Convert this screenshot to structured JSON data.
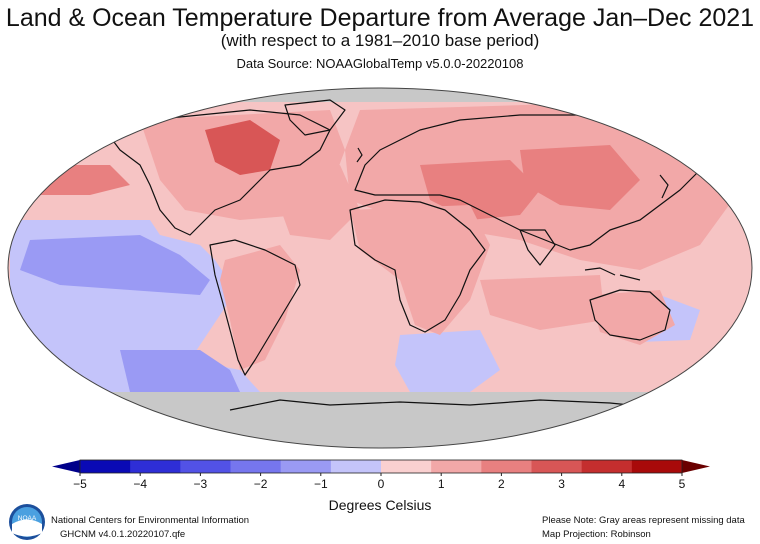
{
  "header": {
    "title": "Land & Ocean Temperature Departure from Average Jan–Dec 2021",
    "subtitle": "(with respect to a 1981–2010 base period)",
    "source": "Data Source: NOAAGlobalTemp v5.0.0-20220108"
  },
  "legend": {
    "ticks": [
      "−5",
      "−4",
      "−3",
      "−2",
      "−1",
      "0",
      "1",
      "2",
      "3",
      "4",
      "5"
    ],
    "units": "Degrees Celsius",
    "colors": [
      "#0a0ab5",
      "#2e2ed6",
      "#5252e6",
      "#7676ee",
      "#9a9af4",
      "#c4c4fa",
      "#fad0d0",
      "#f2a8a8",
      "#e88080",
      "#d85656",
      "#c42e2e",
      "#a80a0a"
    ]
  },
  "map": {
    "projection": "Robinson",
    "missing_color": "#c8c8c8",
    "land_outline_color": "#111111"
  },
  "footer": {
    "org": "National Centers for Environmental Information",
    "dataset": "GHCNM v4.0.1.20220107.qfe",
    "note": "Please Note: Gray areas represent missing data",
    "projection_label": "Map Projection: Robinson",
    "logo_text": "NOAA"
  }
}
